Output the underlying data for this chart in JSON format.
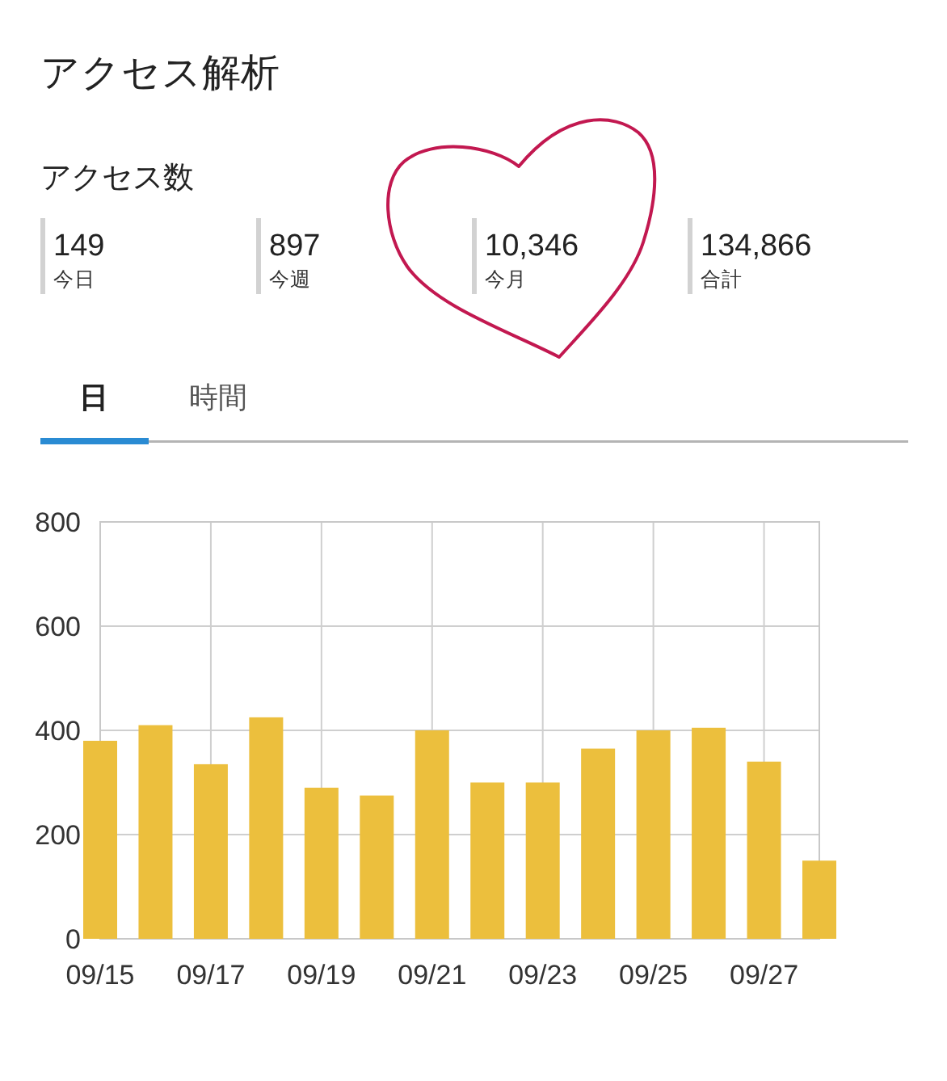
{
  "chart_data": [
    {
      "type": "other",
      "title": "アクセス解析",
      "subtitle": "アクセス数",
      "annotations": [
        "149",
        "今日",
        "897",
        "今週",
        "10,346",
        "今月",
        "134,866",
        "合計"
      ]
    },
    {
      "type": "bar",
      "annotations": [
        "日",
        "時間"
      ],
      "categories": [
        "09/15",
        null,
        "09/17",
        null,
        "09/19",
        null,
        "09/21",
        null,
        "09/23",
        null,
        "09/25",
        null,
        "09/27",
        null
      ],
      "values": [
        380,
        410,
        335,
        425,
        290,
        275,
        400,
        300,
        300,
        365,
        400,
        405,
        340,
        150
      ],
      "color": "#ecbf3d",
      "ylim": [
        0,
        800
      ],
      "yticks": [
        0,
        200,
        400,
        600,
        800
      ],
      "grid": true
    }
  ]
}
